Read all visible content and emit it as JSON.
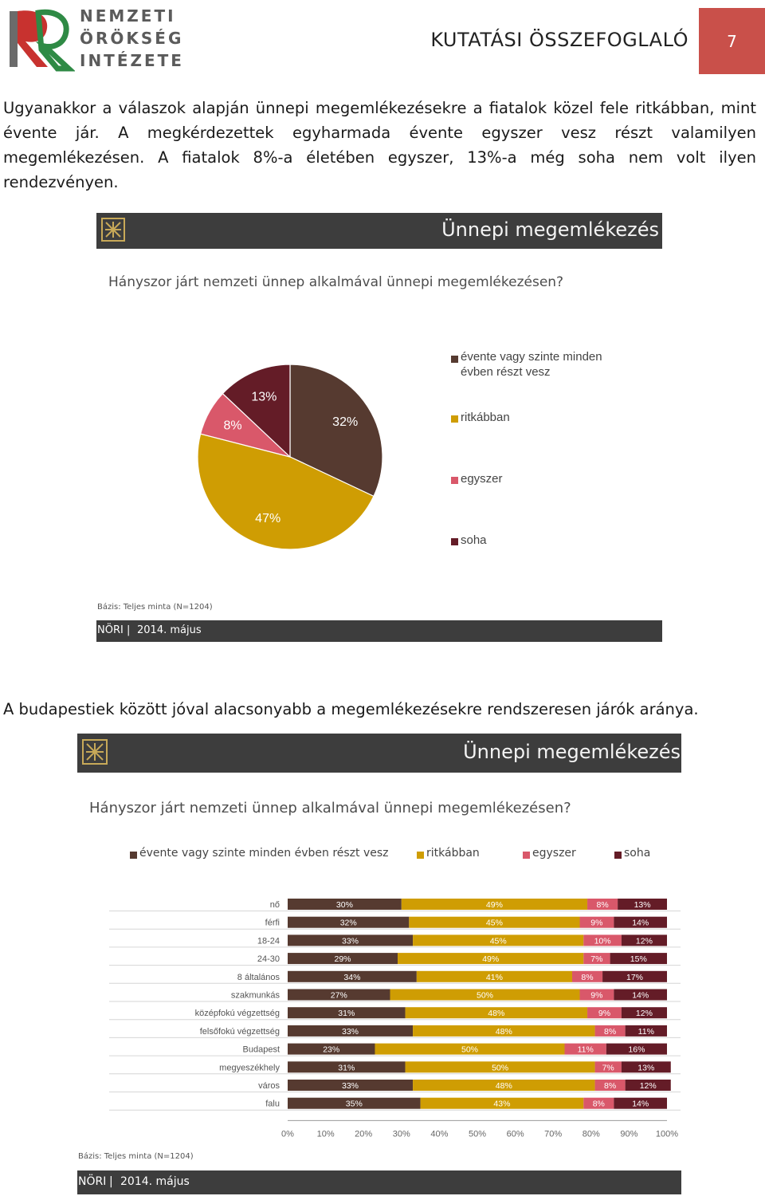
{
  "header": {
    "logo_lines": [
      "NEMZETI",
      "ÖRÖKSÉG",
      "INTÉZETE"
    ],
    "title": "KUTATÁSI ÖSSZEFOGLALÓ",
    "page_number": "7"
  },
  "paragraph1": "Ugyanakkor a válaszok alapján ünnepi megemlékezésekre a fiatalok közel fele ritkábban, mint évente jár. A megkérdezettek egyharmada évente egyszer vesz részt valamilyen megemlékezésen. A fiatalok 8%-a életében egyszer, 13%-a még soha nem volt ilyen rendezvényen.",
  "paragraph2": "A budapestiek között jóval alacsonyabb a megemlékezésekre rendszeresen járók aránya.",
  "colors": {
    "annual": "#563a30",
    "rarer": "#cf9d03",
    "once": "#d9586a",
    "never": "#641c27",
    "bar_dark": "#3d3d3d",
    "badge": "#c9504a"
  },
  "chart1": {
    "banner_title": "Ünnepi megemlékezés",
    "question": "Hányszor járt nemzeti ünnep alkalmával ünnepi megemlékezésen?",
    "basis": "Bázis: Teljes minta (N=1204)",
    "footer_org": "NÖRI",
    "footer_sep": "|",
    "footer_date": "2014. május",
    "legend": [
      "évente vagy szinte minden évben részt vesz",
      "ritkábban",
      "egyszer",
      "soha"
    ],
    "legend_lines": [
      [
        "évente vagy szinte minden",
        "évben részt vesz"
      ],
      [
        "ritkábban"
      ],
      [
        "egyszer"
      ],
      [
        "soha"
      ]
    ]
  },
  "chart2": {
    "banner_title": "Ünnepi megemlékezés",
    "question": "Hányszor járt nemzeti ünnep alkalmával ünnepi megemlékezésen?",
    "basis": "Bázis: Teljes minta (N=1204)",
    "footer_org": "NÖRI",
    "footer_sep": "|",
    "footer_date": "2014. május",
    "legend": [
      "évente vagy szinte minden évben részt vesz",
      "ritkábban",
      "egyszer",
      "soha"
    ],
    "x_ticks": [
      "0%",
      "10%",
      "20%",
      "30%",
      "40%",
      "50%",
      "60%",
      "70%",
      "80%",
      "90%",
      "100%"
    ]
  },
  "chart_data": [
    {
      "type": "pie",
      "labels": [
        "évente vagy szinte minden évben részt vesz",
        "ritkábban",
        "egyszer",
        "soha"
      ],
      "values": [
        32,
        47,
        8,
        13
      ],
      "value_labels": [
        "32%",
        "47%",
        "8%",
        "13%"
      ],
      "legend_position": "right"
    },
    {
      "type": "bar",
      "orientation": "horizontal",
      "stacked": true,
      "categories": [
        "nő",
        "férfi",
        "18-24",
        "24-30",
        "8 általános",
        "szakmunkás",
        "középfokú végzettség",
        "felsőfokú végzettség",
        "Budapest",
        "megyeszékhely",
        "város",
        "falu"
      ],
      "series": [
        {
          "name": "évente vagy szinte minden évben részt vesz",
          "values": [
            30,
            32,
            33,
            29,
            34,
            27,
            31,
            33,
            23,
            31,
            33,
            35
          ]
        },
        {
          "name": "ritkábban",
          "values": [
            49,
            45,
            45,
            49,
            41,
            50,
            48,
            48,
            50,
            50,
            48,
            43
          ]
        },
        {
          "name": "egyszer",
          "values": [
            8,
            9,
            10,
            7,
            8,
            9,
            9,
            8,
            11,
            7,
            8,
            8
          ]
        },
        {
          "name": "soha",
          "values": [
            13,
            14,
            12,
            15,
            17,
            14,
            12,
            11,
            16,
            13,
            12,
            14
          ]
        }
      ],
      "xlim": [
        0,
        100
      ],
      "legend_position": "top",
      "grid": false
    }
  ]
}
